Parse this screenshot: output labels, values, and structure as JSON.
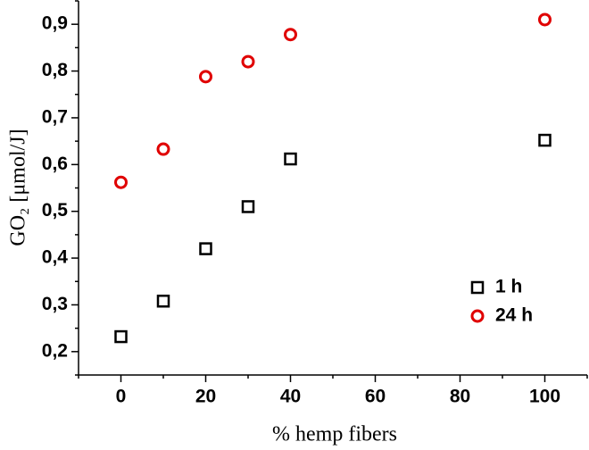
{
  "chart_data": {
    "type": "scatter",
    "x_label": "% hemp fibers",
    "y_label": "GO₂ [μmol/J]",
    "series": [
      {
        "name": "1 h",
        "color": "#000000",
        "marker": "square",
        "x": [
          0,
          10,
          20,
          30,
          40,
          100
        ],
        "values": [
          0.232,
          0.308,
          0.42,
          0.51,
          0.612,
          0.652
        ]
      },
      {
        "name": "24 h",
        "color": "#e00000",
        "marker": "circle",
        "x": [
          0,
          10,
          20,
          30,
          40,
          100
        ],
        "values": [
          0.562,
          0.633,
          0.788,
          0.82,
          0.878,
          0.91
        ]
      }
    ],
    "xlim": [
      -10,
      110
    ],
    "xticks": [
      0,
      20,
      40,
      60,
      80,
      100
    ],
    "xminorticks": [
      -10,
      10,
      30,
      50,
      70,
      90,
      110
    ],
    "ylim": [
      0.15,
      0.95
    ],
    "yticks": [
      {
        "value": 0.2,
        "label": "0,2"
      },
      {
        "value": 0.3,
        "label": "0,3"
      },
      {
        "value": 0.4,
        "label": "0,4"
      },
      {
        "value": 0.5,
        "label": "0,5"
      },
      {
        "value": 0.6,
        "label": "0,6"
      },
      {
        "value": 0.7,
        "label": "0,7"
      },
      {
        "value": 0.8,
        "label": "0,8"
      },
      {
        "value": 0.9,
        "label": "0,9"
      }
    ],
    "yminorticks": [
      0.15,
      0.25,
      0.35,
      0.45,
      0.55,
      0.65,
      0.75,
      0.85,
      0.95
    ],
    "legend": "lower right",
    "grid": false
  }
}
